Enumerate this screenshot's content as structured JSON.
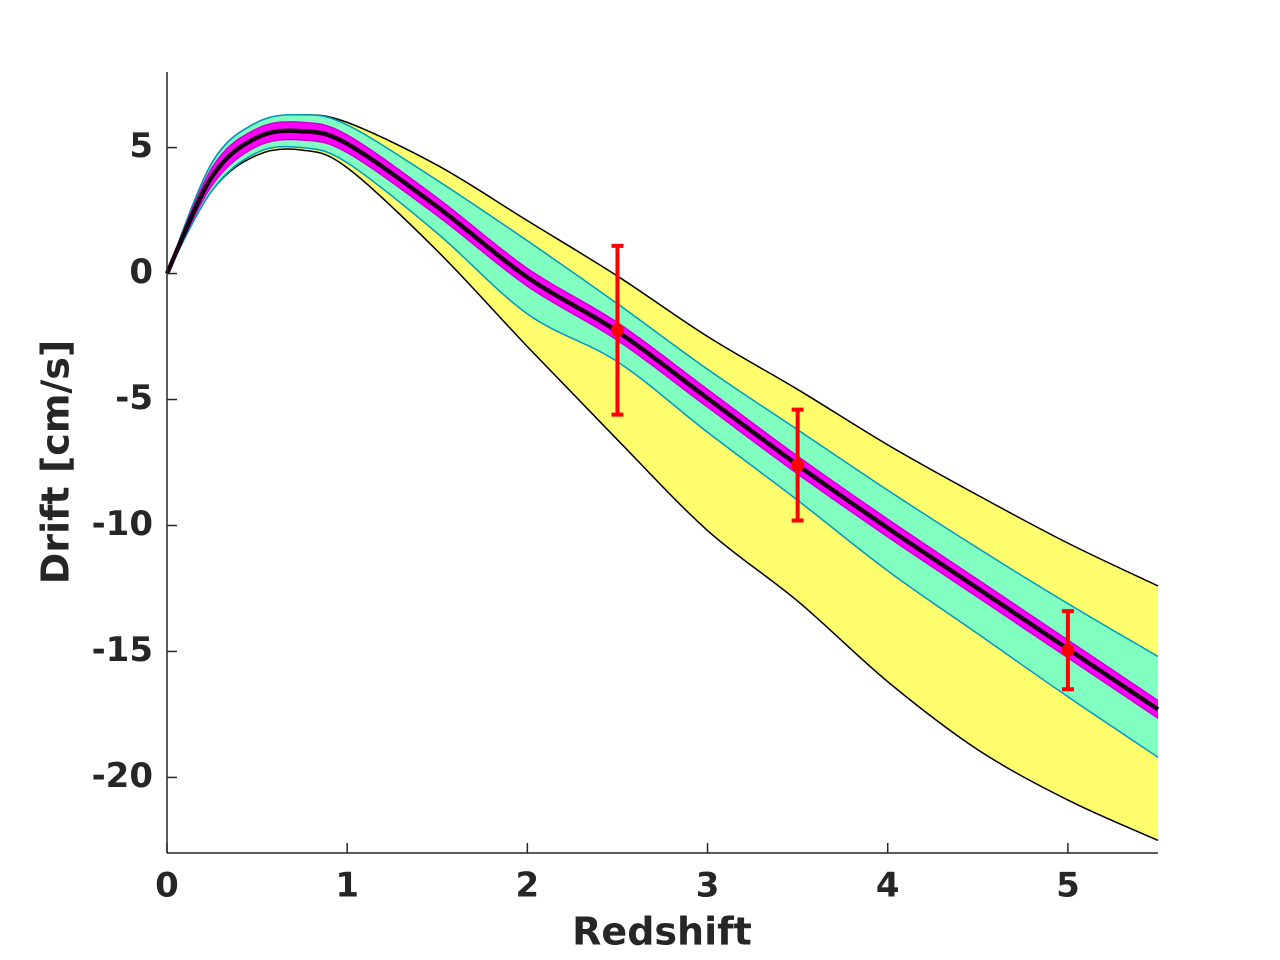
{
  "chart_data": {
    "type": "band-line",
    "x_label": "Redshift",
    "y_label": "Drift [cm/s]",
    "x": [
      0,
      0.25,
      0.5,
      0.75,
      1,
      1.5,
      2,
      2.5,
      3,
      3.5,
      4,
      4.5,
      5,
      5.5
    ],
    "bands": [
      {
        "color": "#ffff6e",
        "edge": "#000000",
        "upper": [
          0,
          4.4,
          6.0,
          6.3,
          6.0,
          4.3,
          2.1,
          -0.1,
          -2.5,
          -4.6,
          -6.8,
          -8.8,
          -10.7,
          -12.4
        ],
        "lower": [
          0,
          3.3,
          4.7,
          4.9,
          4.2,
          0.9,
          -2.9,
          -6.6,
          -10.2,
          -13.0,
          -16.2,
          -18.9,
          -20.9,
          -22.5
        ]
      },
      {
        "color": "#80ffc0",
        "edge": "#0099bb",
        "upper": [
          0,
          4.4,
          6.0,
          6.3,
          5.9,
          3.7,
          1.3,
          -1.2,
          -3.8,
          -6.2,
          -8.6,
          -10.9,
          -13.1,
          -15.2
        ],
        "lower": [
          0,
          3.3,
          4.8,
          5.0,
          4.4,
          1.6,
          -1.6,
          -3.5,
          -6.3,
          -9.0,
          -11.8,
          -14.3,
          -16.8,
          -19.2
        ]
      },
      {
        "color": "#ff00ff",
        "edge": "#cc00cc",
        "upper": [
          0,
          4.2,
          5.75,
          6.0,
          5.5,
          3.0,
          0.2,
          -1.95,
          -4.6,
          -7.25,
          -9.75,
          -12.15,
          -14.55,
          -16.95
        ],
        "lower": [
          0,
          3.5,
          5.05,
          5.3,
          4.8,
          2.3,
          -0.5,
          -2.65,
          -5.3,
          -7.95,
          -10.45,
          -12.85,
          -15.25,
          -17.65
        ]
      }
    ],
    "line": {
      "color": "#1a0014",
      "values": [
        0,
        3.85,
        5.4,
        5.65,
        5.15,
        2.65,
        -0.15,
        -2.3,
        -4.95,
        -7.6,
        -10.1,
        -12.5,
        -14.9,
        -17.3
      ]
    },
    "points": {
      "color": "#ff0000",
      "x": [
        2.5,
        3.5,
        5
      ],
      "values": [
        -2.25,
        -7.6,
        -14.95
      ],
      "errors": [
        3.35,
        2.2,
        1.55
      ]
    },
    "xlim": [
      0,
      5.5
    ],
    "ylim": [
      -23,
      8
    ],
    "xticks": [
      0,
      1,
      2,
      3,
      4,
      5
    ],
    "yticks": [
      -20,
      -15,
      -10,
      -5,
      0,
      5
    ]
  }
}
